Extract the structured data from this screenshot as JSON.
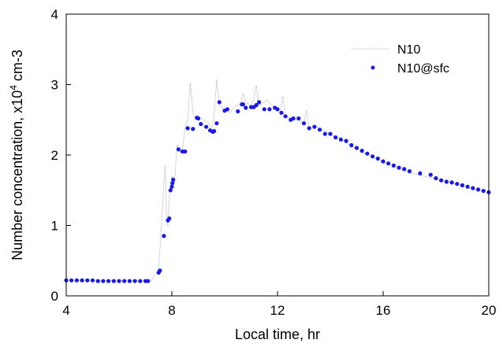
{
  "chart_data": {
    "type": "line",
    "title": "",
    "xlabel": "Local time, hr",
    "ylabel": {
      "prefix": "Number concentration, x10",
      "sup": "4",
      "suffix": " cm-3"
    },
    "xlim": [
      4,
      20
    ],
    "ylim": [
      0,
      4
    ],
    "xticks": [
      4,
      8,
      12,
      16,
      20
    ],
    "yticks": [
      0,
      1,
      2,
      3,
      4
    ],
    "grid": false,
    "legend_position": "top-right",
    "colors": {
      "line": "#a6a6a6",
      "markers": "#1a1ae6"
    },
    "series": [
      {
        "name": "N10",
        "style": "thin-line",
        "points": [
          [
            4.0,
            0.22
          ],
          [
            4.5,
            0.22
          ],
          [
            5.0,
            0.22
          ],
          [
            5.5,
            0.22
          ],
          [
            6.0,
            0.22
          ],
          [
            6.5,
            0.22
          ],
          [
            7.0,
            0.21
          ],
          [
            7.2,
            0.21
          ],
          [
            7.3,
            0.26
          ],
          [
            7.4,
            0.32
          ],
          [
            7.5,
            0.4
          ],
          [
            7.6,
            0.95
          ],
          [
            7.7,
            1.6
          ],
          [
            7.75,
            1.85
          ],
          [
            7.8,
            1.1
          ],
          [
            7.85,
            1.0
          ],
          [
            7.9,
            1.4
          ],
          [
            8.0,
            1.7
          ],
          [
            8.1,
            1.6
          ],
          [
            8.2,
            2.15
          ],
          [
            8.3,
            2.05
          ],
          [
            8.4,
            2.05
          ],
          [
            8.5,
            2.4
          ],
          [
            8.6,
            2.5
          ],
          [
            8.7,
            3.02
          ],
          [
            8.8,
            2.6
          ],
          [
            8.9,
            2.5
          ],
          [
            9.0,
            2.55
          ],
          [
            9.2,
            2.5
          ],
          [
            9.4,
            2.45
          ],
          [
            9.5,
            2.35
          ],
          [
            9.6,
            2.55
          ],
          [
            9.7,
            3.07
          ],
          [
            9.8,
            2.7
          ],
          [
            10.0,
            2.65
          ],
          [
            10.2,
            2.6
          ],
          [
            10.4,
            2.7
          ],
          [
            10.6,
            2.72
          ],
          [
            10.7,
            2.87
          ],
          [
            10.8,
            2.75
          ],
          [
            11.0,
            2.7
          ],
          [
            11.1,
            2.8
          ],
          [
            11.2,
            2.99
          ],
          [
            11.3,
            2.7
          ],
          [
            11.5,
            2.75
          ],
          [
            11.6,
            2.78
          ],
          [
            11.8,
            2.7
          ],
          [
            12.0,
            2.65
          ],
          [
            12.1,
            2.6
          ],
          [
            12.2,
            2.83
          ],
          [
            12.3,
            2.55
          ],
          [
            12.5,
            2.52
          ],
          [
            12.8,
            2.5
          ],
          [
            13.0,
            2.45
          ],
          [
            13.1,
            2.63
          ],
          [
            13.2,
            2.4
          ],
          [
            13.5,
            2.4
          ],
          [
            14.0,
            2.3
          ],
          [
            14.5,
            2.2
          ],
          [
            15.0,
            2.08
          ],
          [
            15.5,
            1.98
          ],
          [
            16.0,
            1.9
          ],
          [
            16.5,
            1.82
          ],
          [
            17.0,
            1.75
          ],
          [
            17.5,
            1.7
          ],
          [
            18.0,
            1.66
          ],
          [
            18.5,
            1.61
          ],
          [
            19.0,
            1.56
          ],
          [
            19.5,
            1.51
          ],
          [
            20.0,
            1.46
          ]
        ]
      },
      {
        "name": "N10@sfc",
        "style": "dots",
        "points": [
          [
            4.0,
            0.22
          ],
          [
            4.2,
            0.22
          ],
          [
            4.4,
            0.22
          ],
          [
            4.6,
            0.22
          ],
          [
            4.8,
            0.22
          ],
          [
            5.0,
            0.22
          ],
          [
            5.2,
            0.21
          ],
          [
            5.4,
            0.21
          ],
          [
            5.6,
            0.21
          ],
          [
            5.8,
            0.21
          ],
          [
            6.0,
            0.21
          ],
          [
            6.2,
            0.21
          ],
          [
            6.4,
            0.21
          ],
          [
            6.6,
            0.21
          ],
          [
            6.8,
            0.21
          ],
          [
            7.0,
            0.21
          ],
          [
            7.1,
            0.21
          ],
          [
            7.5,
            0.33
          ],
          [
            7.55,
            0.36
          ],
          [
            7.7,
            0.85
          ],
          [
            7.85,
            1.07
          ],
          [
            7.9,
            1.1
          ],
          [
            7.95,
            1.5
          ],
          [
            8.0,
            1.55
          ],
          [
            8.02,
            1.6
          ],
          [
            8.05,
            1.65
          ],
          [
            8.25,
            2.08
          ],
          [
            8.4,
            2.05
          ],
          [
            8.5,
            2.05
          ],
          [
            8.6,
            2.38
          ],
          [
            8.8,
            2.37
          ],
          [
            8.95,
            2.53
          ],
          [
            9.0,
            2.52
          ],
          [
            9.1,
            2.44
          ],
          [
            9.3,
            2.4
          ],
          [
            9.45,
            2.35
          ],
          [
            9.55,
            2.33
          ],
          [
            9.6,
            2.34
          ],
          [
            9.7,
            2.45
          ],
          [
            9.8,
            2.75
          ],
          [
            10.0,
            2.63
          ],
          [
            10.1,
            2.65
          ],
          [
            10.5,
            2.62
          ],
          [
            10.65,
            2.72
          ],
          [
            10.7,
            2.72
          ],
          [
            10.8,
            2.67
          ],
          [
            11.0,
            2.68
          ],
          [
            11.1,
            2.68
          ],
          [
            11.2,
            2.71
          ],
          [
            11.3,
            2.75
          ],
          [
            11.5,
            2.65
          ],
          [
            11.7,
            2.65
          ],
          [
            11.9,
            2.67
          ],
          [
            12.0,
            2.65
          ],
          [
            12.15,
            2.6
          ],
          [
            12.3,
            2.55
          ],
          [
            12.5,
            2.5
          ],
          [
            12.6,
            2.52
          ],
          [
            12.8,
            2.52
          ],
          [
            13.0,
            2.45
          ],
          [
            13.2,
            2.38
          ],
          [
            13.4,
            2.4
          ],
          [
            13.6,
            2.36
          ],
          [
            13.8,
            2.3
          ],
          [
            14.0,
            2.3
          ],
          [
            14.2,
            2.25
          ],
          [
            14.4,
            2.22
          ],
          [
            14.6,
            2.2
          ],
          [
            14.8,
            2.14
          ],
          [
            15.0,
            2.1
          ],
          [
            15.2,
            2.06
          ],
          [
            15.4,
            2.02
          ],
          [
            15.6,
            1.98
          ],
          [
            15.8,
            1.95
          ],
          [
            16.0,
            1.91
          ],
          [
            16.2,
            1.88
          ],
          [
            16.4,
            1.85
          ],
          [
            16.6,
            1.82
          ],
          [
            16.8,
            1.8
          ],
          [
            17.0,
            1.77
          ],
          [
            17.4,
            1.74
          ],
          [
            17.8,
            1.72
          ],
          [
            18.0,
            1.67
          ],
          [
            18.2,
            1.64
          ],
          [
            18.4,
            1.62
          ],
          [
            18.6,
            1.61
          ],
          [
            18.8,
            1.59
          ],
          [
            19.0,
            1.57
          ],
          [
            19.2,
            1.55
          ],
          [
            19.4,
            1.53
          ],
          [
            19.6,
            1.51
          ],
          [
            19.8,
            1.49
          ],
          [
            20.0,
            1.47
          ]
        ]
      }
    ]
  }
}
